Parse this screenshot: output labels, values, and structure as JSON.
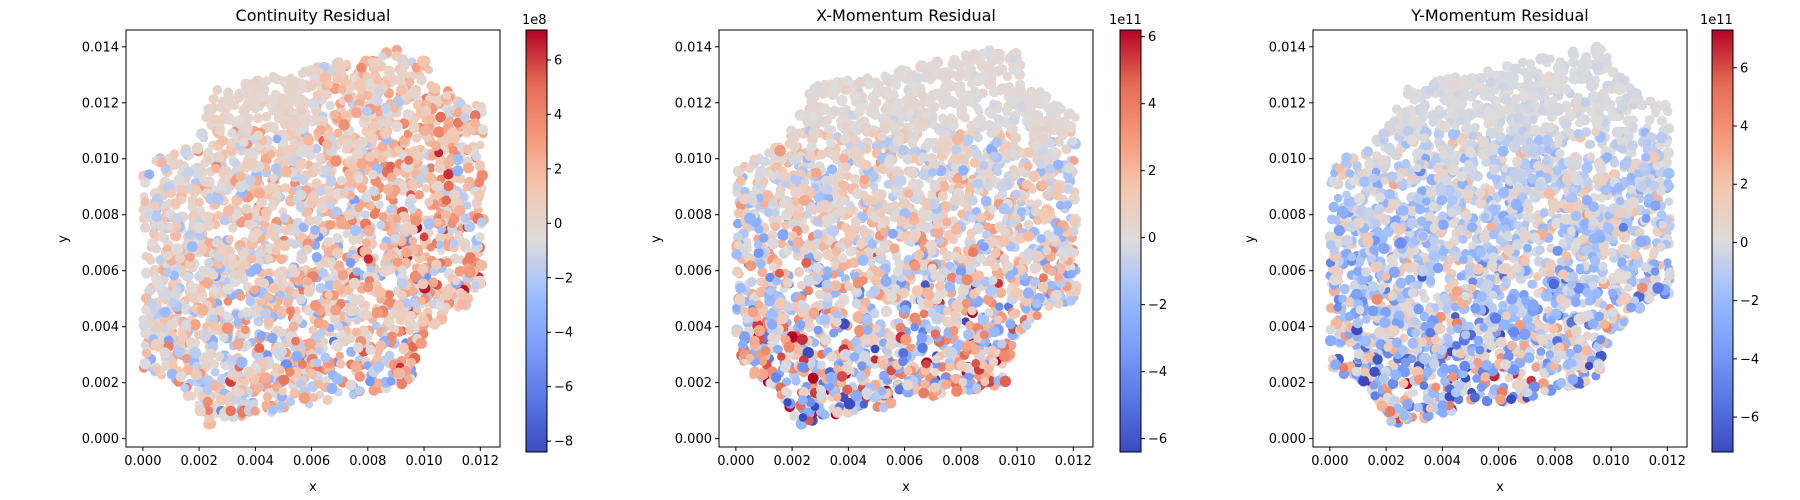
{
  "chart_data": [
    {
      "type": "scatter",
      "title": "Continuity Residual",
      "xlabel": "x",
      "ylabel": "y",
      "xlim": [
        -0.0006,
        0.0127
      ],
      "ylim": [
        -0.0003,
        0.0146
      ],
      "xticks": [
        "0.000",
        "0.002",
        "0.004",
        "0.006",
        "0.008",
        "0.010",
        "0.012"
      ],
      "yticks": [
        "0.000",
        "0.002",
        "0.004",
        "0.006",
        "0.008",
        "0.010",
        "0.012",
        "0.014"
      ],
      "colormap": "coolwarm",
      "colorbar": {
        "min": -8.4,
        "max": 7.1,
        "ticks": [
          "−8",
          "−6",
          "−4",
          "−2",
          "0",
          "2",
          "4",
          "6"
        ],
        "tick_values": [
          -8,
          -6,
          -4,
          -2,
          0,
          2,
          4,
          6
        ],
        "offset_text": "1e8"
      },
      "domain_shape": "plate with quarter-circle cutouts at top-left and bottom-right corners",
      "value_pattern": "mostly near zero with positive residuals dominating in upper right region"
    },
    {
      "type": "scatter",
      "title": "X-Momentum Residual",
      "xlabel": "x",
      "ylabel": "y",
      "xlim": [
        -0.0006,
        0.0127
      ],
      "ylim": [
        -0.0003,
        0.0146
      ],
      "xticks": [
        "0.000",
        "0.002",
        "0.004",
        "0.006",
        "0.008",
        "0.010",
        "0.012"
      ],
      "yticks": [
        "0.000",
        "0.002",
        "0.004",
        "0.006",
        "0.008",
        "0.010",
        "0.012",
        "0.014"
      ],
      "colormap": "coolwarm",
      "colorbar": {
        "min": -6.4,
        "max": 6.2,
        "ticks": [
          "−6",
          "−4",
          "−2",
          "0",
          "2",
          "4",
          "6"
        ],
        "tick_values": [
          -6,
          -4,
          -2,
          0,
          2,
          4,
          6
        ],
        "offset_text": "1e11"
      },
      "domain_shape": "plate with quarter-circle cutouts at top-left and bottom-right corners",
      "value_pattern": "mixed positive and negative residuals, stronger near bottom boundary"
    },
    {
      "type": "scatter",
      "title": "Y-Momentum Residual",
      "xlabel": "x",
      "ylabel": "y",
      "xlim": [
        -0.0006,
        0.0127
      ],
      "ylim": [
        -0.0003,
        0.0146
      ],
      "xticks": [
        "0.000",
        "0.002",
        "0.004",
        "0.006",
        "0.008",
        "0.010",
        "0.012"
      ],
      "yticks": [
        "0.000",
        "0.002",
        "0.004",
        "0.006",
        "0.008",
        "0.010",
        "0.012",
        "0.014"
      ],
      "colormap": "coolwarm",
      "colorbar": {
        "min": -7.2,
        "max": 7.3,
        "ticks": [
          "−6",
          "−4",
          "−2",
          "0",
          "2",
          "4",
          "6"
        ],
        "tick_values": [
          -6,
          -4,
          -2,
          0,
          2,
          4,
          6
        ],
        "offset_text": "1e11"
      },
      "domain_shape": "plate with quarter-circle cutouts at top-left and bottom-right corners",
      "value_pattern": "mostly negative (blue) residuals concentrated near bottom and left"
    }
  ]
}
